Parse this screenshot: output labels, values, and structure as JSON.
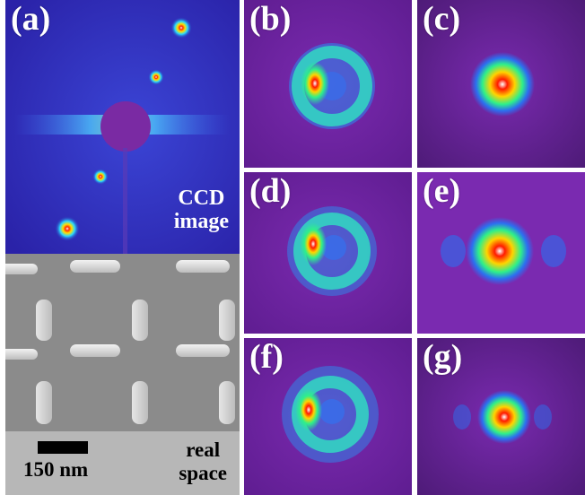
{
  "panel_labels": {
    "a": "(a)",
    "b": "(b)",
    "c": "(c)",
    "d": "(d)",
    "e": "(e)",
    "f": "(f)",
    "g": "(g)"
  },
  "ccd_caption": {
    "line1": "CCD",
    "line2": "image"
  },
  "scale_bar": {
    "label": "150 nm"
  },
  "real_space": {
    "line1": "real",
    "line2": "space"
  },
  "colors": {
    "background_purple": "#6a1f9a",
    "ccd_blue": "#2a2fb8",
    "sem_gray": "#8e8e8e",
    "footer_gray": "#b7b7b7",
    "divider": "#ffffff"
  }
}
